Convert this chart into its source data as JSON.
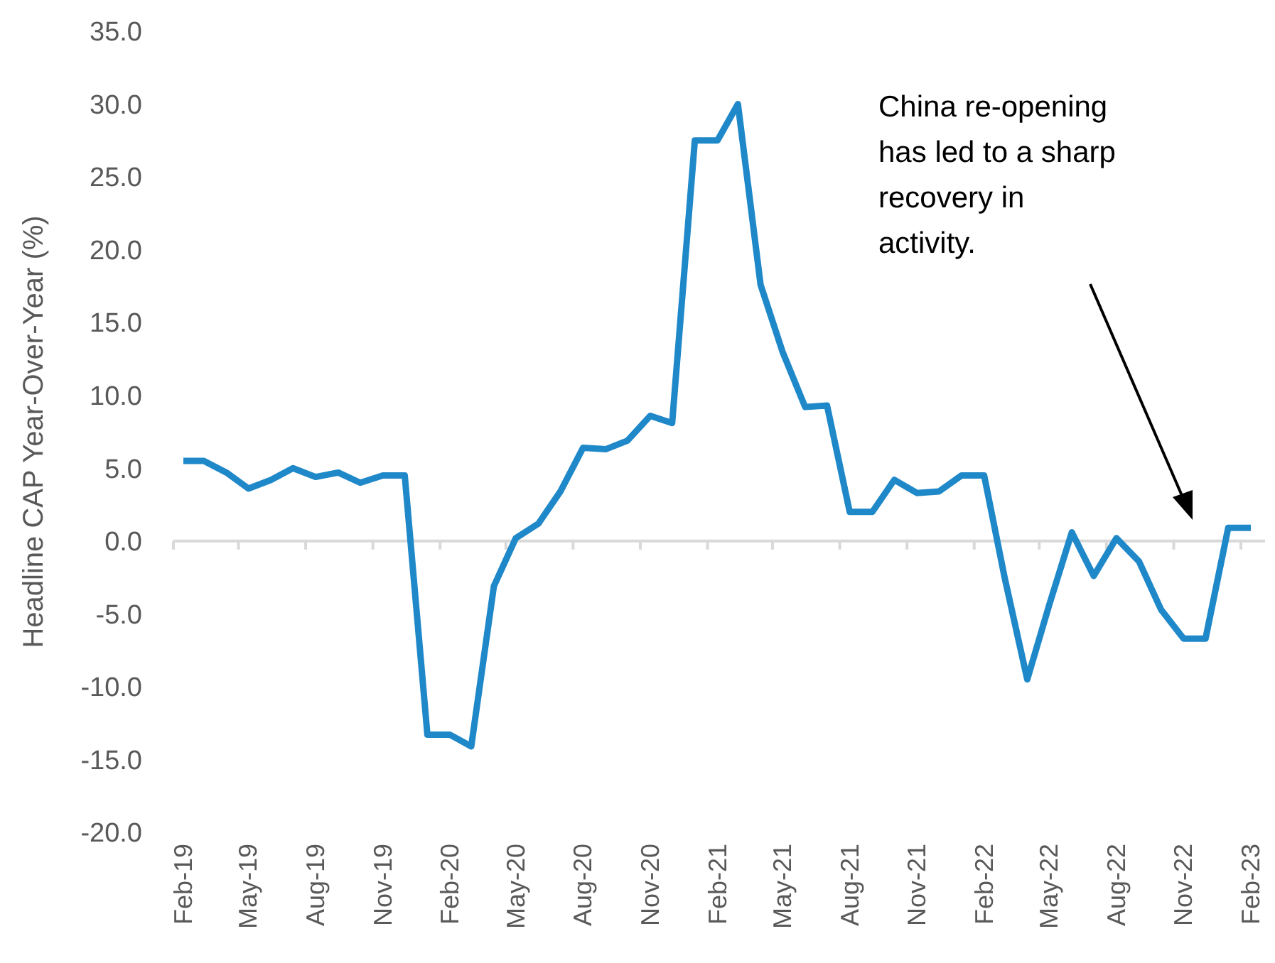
{
  "chart_data": {
    "type": "line",
    "ylabel": "Headline CAP Year-Over-Year (%)",
    "annotations": [
      "China re-opening has led to a sharp recovery in activity."
    ],
    "x": [
      "2019-02",
      "2019-03",
      "2019-04",
      "2019-05",
      "2019-06",
      "2019-07",
      "2019-08",
      "2019-09",
      "2019-10",
      "2019-11",
      "2019-12",
      "2020-01",
      "2020-02",
      "2020-03",
      "2020-04",
      "2020-05",
      "2020-06",
      "2020-07",
      "2020-08",
      "2020-09",
      "2020-10",
      "2020-11",
      "2020-12",
      "2021-01",
      "2021-02",
      "2021-03",
      "2021-04",
      "2021-05",
      "2021-06",
      "2021-07",
      "2021-08",
      "2021-09",
      "2021-10",
      "2021-11",
      "2021-12",
      "2022-01",
      "2022-02",
      "2022-03",
      "2022-04",
      "2022-05",
      "2022-06",
      "2022-07",
      "2022-08",
      "2022-09",
      "2022-10",
      "2022-11",
      "2022-12",
      "2023-01",
      "2023-02"
    ],
    "series": [
      {
        "color": "#1f88c9",
        "values": [
          5.5,
          5.5,
          4.7,
          3.6,
          4.2,
          5.0,
          4.4,
          4.7,
          4.0,
          4.5,
          4.5,
          -13.3,
          -13.3,
          -14.1,
          -3.1,
          0.2,
          1.2,
          3.4,
          6.4,
          6.3,
          6.9,
          8.6,
          8.1,
          27.5,
          27.5,
          30.0,
          17.6,
          13.0,
          9.2,
          9.3,
          2.0,
          2.0,
          4.2,
          3.3,
          3.4,
          4.5,
          4.5,
          -2.5,
          -9.5,
          -4.4,
          0.6,
          -2.4,
          0.2,
          -1.4,
          -4.7,
          -6.7,
          -6.7,
          0.9,
          0.9
        ]
      }
    ],
    "ylim": [
      -20,
      35
    ],
    "yticks": [
      {
        "value": -20,
        "label": "-20.0"
      },
      {
        "value": -15,
        "label": "-15.0"
      },
      {
        "value": -10,
        "label": "-10.0"
      },
      {
        "value": -5,
        "label": "-5.0"
      },
      {
        "value": 0,
        "label": "0.0"
      },
      {
        "value": 5,
        "label": "5.0"
      },
      {
        "value": 10,
        "label": "10.0"
      },
      {
        "value": 15,
        "label": "15.0"
      },
      {
        "value": 20,
        "label": "20.0"
      },
      {
        "value": 25,
        "label": "25.0"
      },
      {
        "value": 30,
        "label": "30.0"
      },
      {
        "value": 35,
        "label": "35.0"
      }
    ],
    "xlim": [
      "2019-02",
      "2023-02"
    ],
    "xticks": [
      {
        "value": "2019-02",
        "label": "Feb-19"
      },
      {
        "value": "2019-05",
        "label": "May-19"
      },
      {
        "value": "2019-08",
        "label": "Aug-19"
      },
      {
        "value": "2019-11",
        "label": "Nov-19"
      },
      {
        "value": "2020-02",
        "label": "Feb-20"
      },
      {
        "value": "2020-05",
        "label": "May-20"
      },
      {
        "value": "2020-08",
        "label": "Aug-20"
      },
      {
        "value": "2020-11",
        "label": "Nov-20"
      },
      {
        "value": "2021-02",
        "label": "Feb-21"
      },
      {
        "value": "2021-05",
        "label": "May-21"
      },
      {
        "value": "2021-08",
        "label": "Aug-21"
      },
      {
        "value": "2021-11",
        "label": "Nov-21"
      },
      {
        "value": "2022-02",
        "label": "Feb-22"
      },
      {
        "value": "2022-05",
        "label": "May-22"
      },
      {
        "value": "2022-08",
        "label": "Aug-22"
      },
      {
        "value": "2022-11",
        "label": "Nov-22"
      },
      {
        "value": "2023-02",
        "label": "Feb-23"
      }
    ],
    "marker": "none",
    "line_style": "solid"
  }
}
